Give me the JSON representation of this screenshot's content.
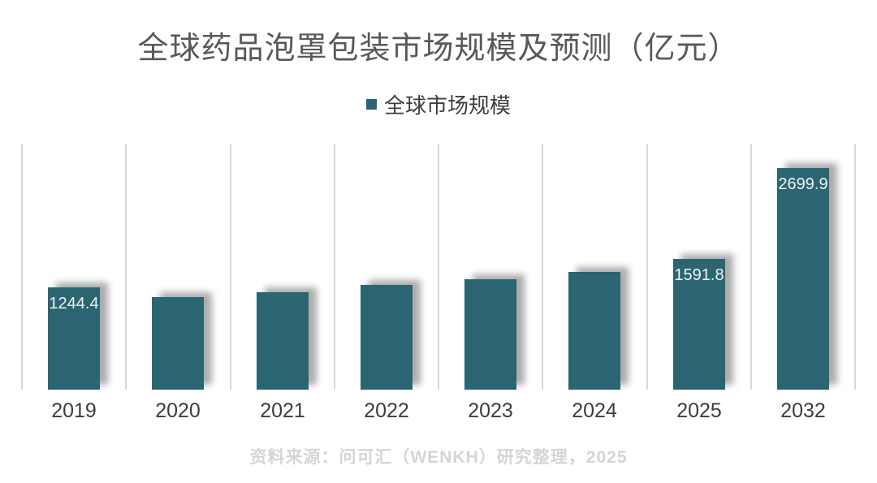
{
  "header": {
    "title": "全球药品泡罩包装市场规模及预测（亿元）"
  },
  "legend": {
    "label": "全球市场规模",
    "swatch_color": "#2b6572"
  },
  "footer": {
    "source_note": "资料来源：问可汇（WENKH）研究整理，2025"
  },
  "chart_data": {
    "type": "bar",
    "title": "全球药品泡罩包装市场规模及预测（亿元）",
    "legend_entries": [
      "全球市场规模"
    ],
    "legend_position": "top-center",
    "categories": [
      "2019",
      "2020",
      "2021",
      "2022",
      "2023",
      "2024",
      "2025",
      "2032"
    ],
    "values": [
      1244.4,
      1125,
      1185,
      1277,
      1344,
      1436,
      1591.8,
      2699.9
    ],
    "data_labels": [
      "1244.4",
      "",
      "",
      "",
      "",
      "",
      "1591.8",
      "2699.9"
    ],
    "xlabel": "",
    "ylabel": "",
    "ylim": [
      0,
      3000
    ],
    "grid": "vertical-gridlines-only",
    "gridline_color": "#d8d8d8",
    "bar_color": "#2b6572",
    "data_label_color": "#ffffff",
    "background_color": "#ffffff"
  }
}
